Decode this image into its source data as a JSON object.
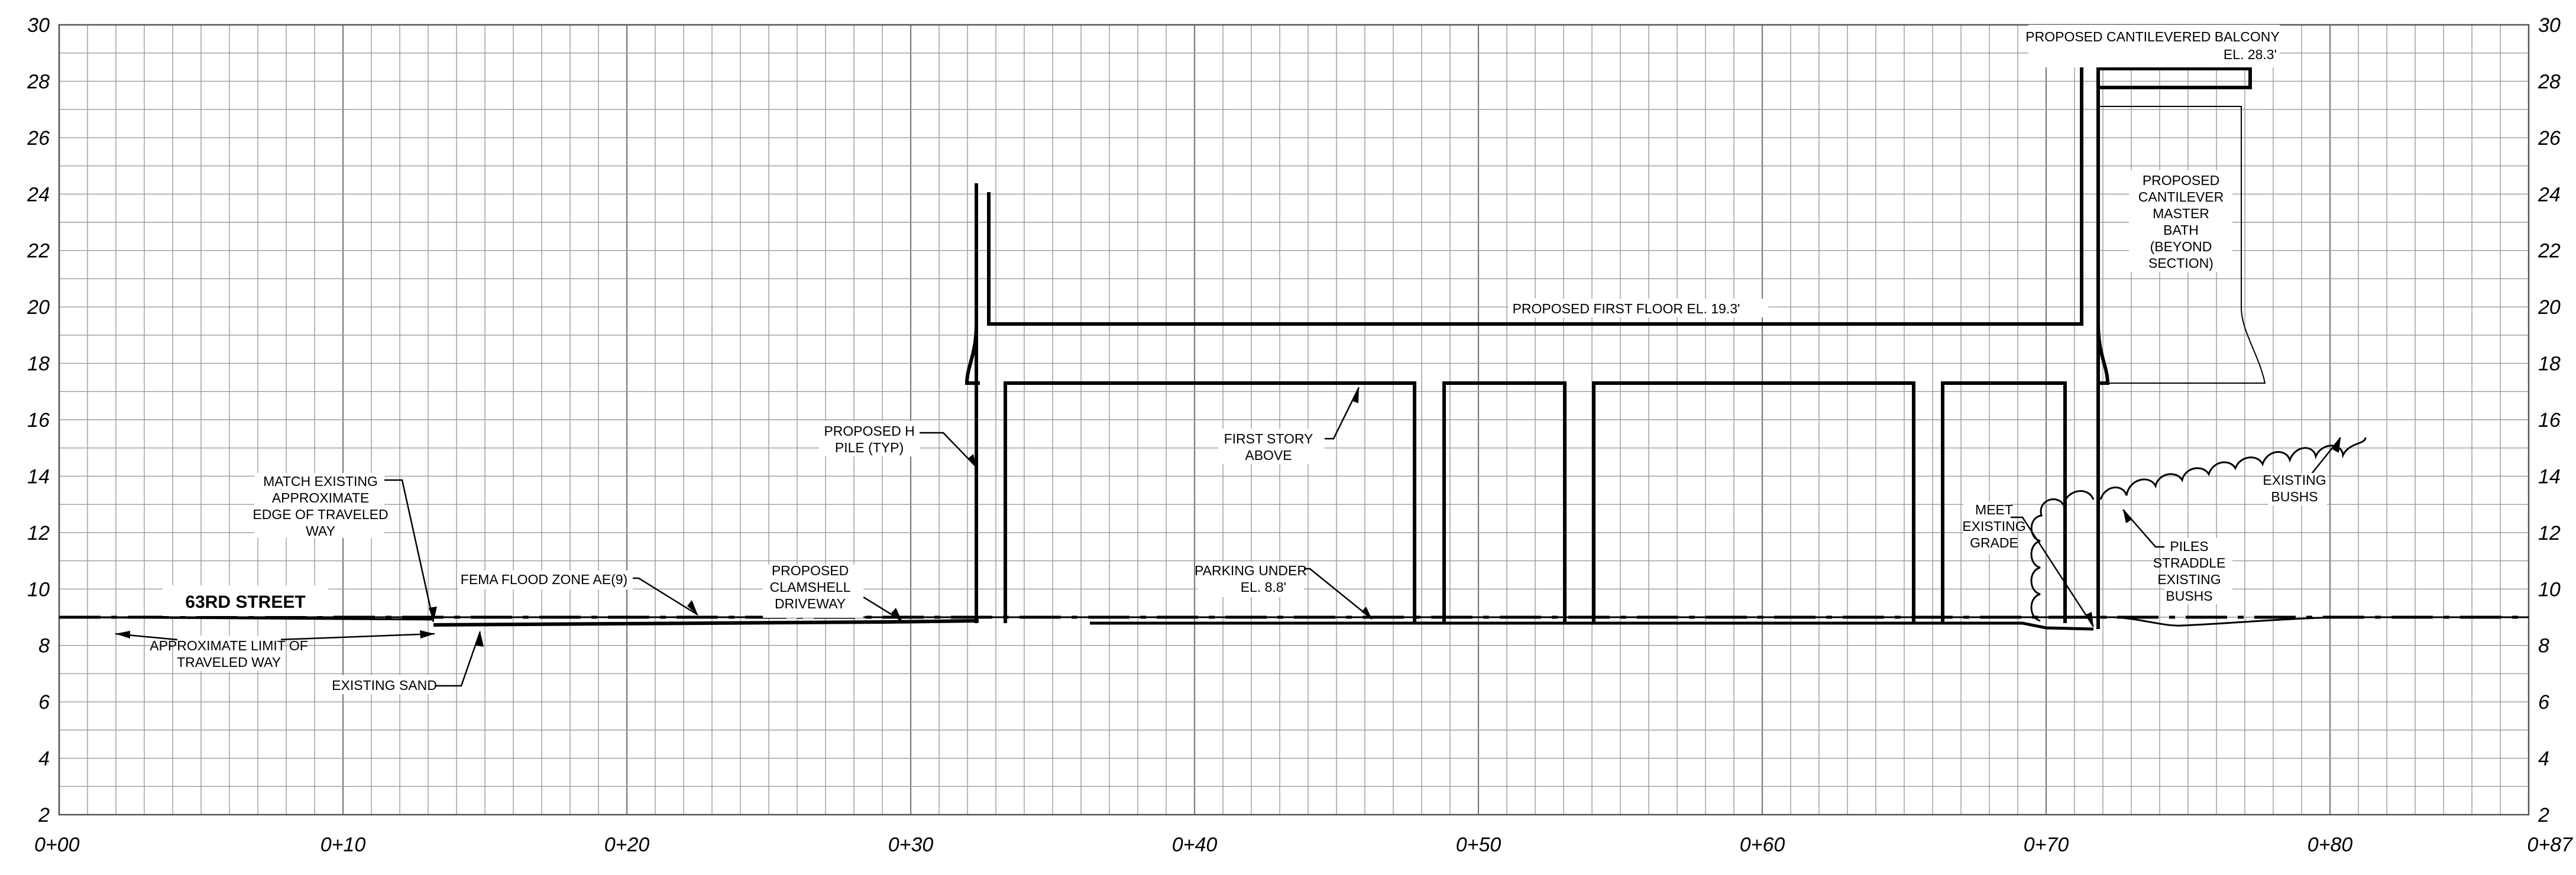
{
  "y_axis": {
    "ticks": [
      "2",
      "4",
      "6",
      "8",
      "10",
      "12",
      "14",
      "16",
      "18",
      "20",
      "22",
      "24",
      "26",
      "28",
      "30"
    ],
    "range": [
      2,
      30
    ]
  },
  "x_axis": {
    "ticks": [
      "0+00",
      "0+10",
      "0+20",
      "0+30",
      "0+40",
      "0+50",
      "0+60",
      "0+70",
      "0+80",
      "0+87"
    ],
    "range": [
      0,
      87
    ]
  },
  "street_label": "63RD STREET",
  "labels": {
    "balcony_1": "PROPOSED CANTILEVERED BALCONY",
    "balcony_2": "EL. 28.3'",
    "bath_1": "PROPOSED",
    "bath_2": "CANTILEVER",
    "bath_3": "MASTER",
    "bath_4": "BATH",
    "bath_5": "(BEYOND",
    "bath_6": "SECTION)",
    "first_floor": "PROPOSED FIRST FLOOR EL. 19.3'",
    "pile_1": "PROPOSED H",
    "pile_2": "PILE (TYP)",
    "first_story_1": "FIRST STORY",
    "first_story_2": "ABOVE",
    "match_1": "MATCH EXISTING",
    "match_2": "APPROXIMATE",
    "match_3": "EDGE OF TRAVELED",
    "match_4": "WAY",
    "fema": "FEMA FLOOD ZONE AE(9)",
    "clamshell_1": "PROPOSED",
    "clamshell_2": "CLAMSHELL",
    "clamshell_3": "DRIVEWAY",
    "parking_1": "PARKING UNDER",
    "parking_2": "EL. 8.8'",
    "limit_1": "APPROXIMATE LIMIT OF",
    "limit_2": "TRAVELED WAY",
    "sand": "EXISTING SAND",
    "meet_1": "MEET",
    "meet_2": "EXISTING",
    "meet_3": "GRADE",
    "piles_1": "PILES",
    "piles_2": "STRADDLE",
    "piles_3": "EXISTING",
    "piles_4": "BUSHS",
    "bushs_1": "EXISTING",
    "bushs_2": "BUSHS"
  }
}
